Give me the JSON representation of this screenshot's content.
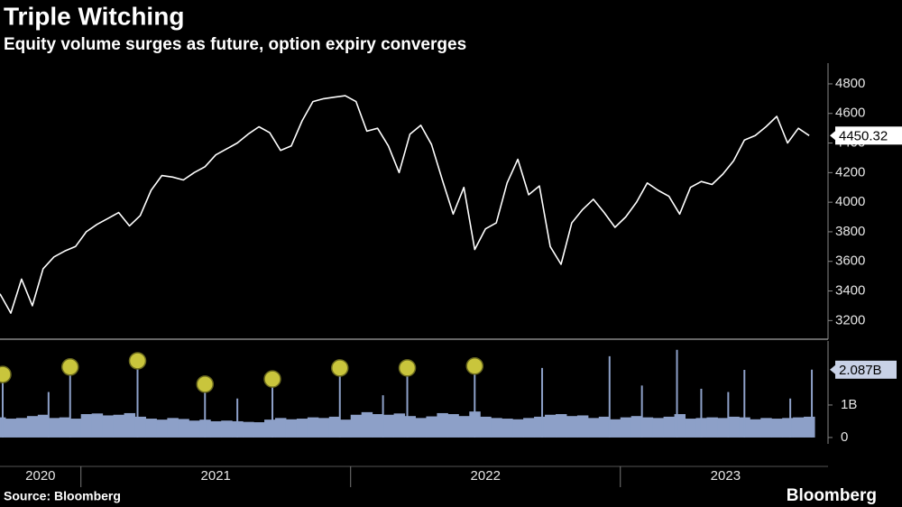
{
  "title": "Triple Witching",
  "subtitle": "Equity volume surges as future, option expiry converges",
  "source": "Source: Bloomberg",
  "brand": "Bloomberg",
  "chart_data": [
    {
      "type": "line",
      "color": "#ffffff",
      "x": [
        2020.7,
        2020.74,
        2020.78,
        2020.82,
        2020.86,
        2020.9,
        2020.94,
        2020.98,
        2021.02,
        2021.06,
        2021.1,
        2021.14,
        2021.18,
        2021.22,
        2021.26,
        2021.3,
        2021.34,
        2021.38,
        2021.42,
        2021.46,
        2021.5,
        2021.54,
        2021.58,
        2021.62,
        2021.66,
        2021.7,
        2021.74,
        2021.78,
        2021.82,
        2021.86,
        2021.9,
        2021.94,
        2021.98,
        2022.02,
        2022.06,
        2022.1,
        2022.14,
        2022.18,
        2022.22,
        2022.26,
        2022.3,
        2022.34,
        2022.38,
        2022.42,
        2022.46,
        2022.5,
        2022.54,
        2022.58,
        2022.62,
        2022.66,
        2022.7,
        2022.74,
        2022.78,
        2022.82,
        2022.86,
        2022.9,
        2022.94,
        2022.98,
        2023.02,
        2023.06,
        2023.1,
        2023.14,
        2023.18,
        2023.22,
        2023.26,
        2023.3,
        2023.34,
        2023.38,
        2023.42,
        2023.46,
        2023.5,
        2023.54,
        2023.58,
        2023.62,
        2023.66,
        2023.7
      ],
      "values": [
        3380,
        3250,
        3480,
        3300,
        3550,
        3630,
        3670,
        3700,
        3800,
        3850,
        3890,
        3930,
        3840,
        3910,
        4080,
        4180,
        4170,
        4150,
        4200,
        4240,
        4320,
        4360,
        4400,
        4460,
        4510,
        4470,
        4350,
        4380,
        4550,
        4680,
        4700,
        4710,
        4720,
        4680,
        4480,
        4500,
        4380,
        4200,
        4460,
        4520,
        4390,
        4150,
        3920,
        4100,
        3680,
        3820,
        3860,
        4130,
        4290,
        4050,
        4110,
        3700,
        3580,
        3860,
        3950,
        4020,
        3930,
        3830,
        3900,
        4000,
        4130,
        4080,
        4040,
        3920,
        4100,
        4140,
        4120,
        4190,
        4280,
        4420,
        4450,
        4510,
        4580,
        4400,
        4500,
        4450.32
      ],
      "xlim": [
        2020.7,
        2023.76
      ],
      "ylim": [
        3080,
        4940
      ],
      "yticks": [
        3200,
        3400,
        3600,
        3800,
        4000,
        4200,
        4400,
        4600,
        4800
      ]
    },
    {
      "type": "bar",
      "color": "#8da0c8",
      "highlight_color": "#c9c53c",
      "x": [
        2020.7,
        2020.74,
        2020.78,
        2020.82,
        2020.86,
        2020.9,
        2020.94,
        2020.98,
        2021.02,
        2021.06,
        2021.1,
        2021.14,
        2021.18,
        2021.22,
        2021.26,
        2021.3,
        2021.34,
        2021.38,
        2021.42,
        2021.46,
        2021.5,
        2021.54,
        2021.58,
        2021.62,
        2021.66,
        2021.7,
        2021.74,
        2021.78,
        2021.82,
        2021.86,
        2021.9,
        2021.94,
        2021.98,
        2022.02,
        2022.06,
        2022.1,
        2022.14,
        2022.18,
        2022.22,
        2022.26,
        2022.3,
        2022.34,
        2022.38,
        2022.42,
        2022.46,
        2022.5,
        2022.54,
        2022.58,
        2022.62,
        2022.66,
        2022.7,
        2022.74,
        2022.78,
        2022.82,
        2022.86,
        2022.9,
        2022.94,
        2022.98,
        2023.02,
        2023.06,
        2023.1,
        2023.14,
        2023.18,
        2023.22,
        2023.26,
        2023.3,
        2023.34,
        2023.38,
        2023.42,
        2023.46,
        2023.5,
        2023.54,
        2023.58,
        2023.62,
        2023.66,
        2023.7
      ],
      "values": [
        0.62,
        0.58,
        0.6,
        0.66,
        0.7,
        0.6,
        0.62,
        0.58,
        0.72,
        0.74,
        0.68,
        0.7,
        0.75,
        0.64,
        0.58,
        0.55,
        0.6,
        0.57,
        0.52,
        0.55,
        0.5,
        0.52,
        0.5,
        0.48,
        0.47,
        0.55,
        0.6,
        0.56,
        0.58,
        0.62,
        0.6,
        0.64,
        0.55,
        0.7,
        0.78,
        0.72,
        0.7,
        0.74,
        0.66,
        0.6,
        0.65,
        0.75,
        0.72,
        0.66,
        0.8,
        0.64,
        0.6,
        0.58,
        0.56,
        0.6,
        0.64,
        0.7,
        0.72,
        0.66,
        0.68,
        0.6,
        0.64,
        0.56,
        0.62,
        0.66,
        0.62,
        0.6,
        0.64,
        0.72,
        0.58,
        0.6,
        0.62,
        0.6,
        0.64,
        0.62,
        0.56,
        0.6,
        0.58,
        0.6,
        0.62,
        0.64
      ],
      "spikes": {
        "x": [
          2020.71,
          2020.88,
          2020.96,
          2021.21,
          2021.46,
          2021.58,
          2021.71,
          2021.96,
          2022.12,
          2022.21,
          2022.46,
          2022.71,
          2022.96,
          2023.08,
          2023.21,
          2023.3,
          2023.4,
          2023.46,
          2023.63,
          2023.71
        ],
        "values": [
          1.94,
          1.4,
          2.17,
          2.36,
          1.64,
          1.2,
          1.8,
          2.14,
          1.3,
          2.14,
          2.2,
          2.14,
          2.5,
          1.6,
          2.7,
          1.5,
          1.4,
          2.08,
          1.2,
          2.087
        ],
        "value_labels": [
          null,
          null,
          null,
          null,
          null,
          null,
          null,
          null,
          null,
          null,
          null,
          null,
          null,
          null,
          null,
          null,
          null,
          null,
          null,
          "2.087B"
        ],
        "circled": [
          true,
          false,
          true,
          true,
          true,
          false,
          true,
          true,
          false,
          true,
          true,
          false,
          false,
          false,
          false,
          false,
          false,
          false,
          false,
          false
        ]
      },
      "xlim": [
        2020.7,
        2023.76
      ],
      "ylim": [
        -0.14,
        2.97
      ],
      "yticks": [
        0,
        {
          "value": 1,
          "label": "1B"
        }
      ],
      "xticks": [
        {
          "value": 2020.85,
          "label": "2020"
        },
        {
          "value": 2021.5,
          "label": "2021"
        },
        {
          "value": 2022.5,
          "label": "2022"
        },
        {
          "value": 2023.39,
          "label": "2023"
        }
      ],
      "x_separators": [
        2021,
        2022,
        2023
      ]
    }
  ]
}
